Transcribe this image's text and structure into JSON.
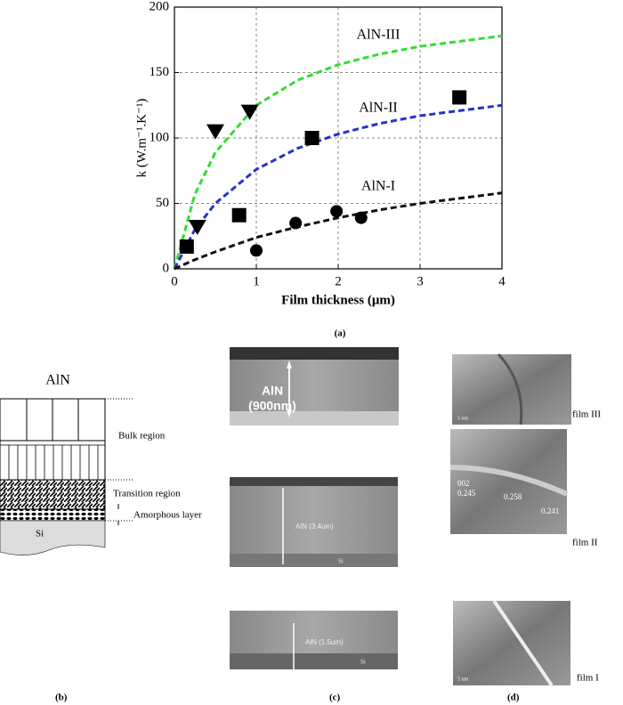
{
  "chart_data": {
    "type": "scatter",
    "caption": "(a)",
    "xlabel": "Film thickness (μm)",
    "ylabel": "k (W.m⁻¹.K⁻¹)",
    "xlim": [
      0,
      4
    ],
    "ylim": [
      0,
      200
    ],
    "xticks": [
      0,
      1,
      2,
      3,
      4
    ],
    "yticks": [
      0,
      50,
      100,
      150,
      200
    ],
    "grid": true,
    "series": [
      {
        "marker": "triangle-down",
        "color": "#000000",
        "x": [
          0.28,
          0.5,
          0.92
        ],
        "values": [
          32,
          105,
          120
        ]
      },
      {
        "marker": "square",
        "color": "#000000",
        "x": [
          0.15,
          0.79,
          1.68,
          3.48
        ],
        "values": [
          17,
          41,
          100,
          131
        ]
      },
      {
        "marker": "circle",
        "color": "#000000",
        "x": [
          1.0,
          1.48,
          1.98,
          2.28
        ],
        "values": [
          14,
          35,
          44,
          39
        ]
      },
      {
        "name": "AlN-III",
        "line": "dashed",
        "color": "#33dd33",
        "x": [
          0,
          0.25,
          0.5,
          1,
          1.5,
          2,
          2.5,
          3,
          3.5,
          4
        ],
        "values": [
          0,
          57,
          89,
          125,
          144,
          156,
          164,
          170,
          174,
          178
        ]
      },
      {
        "name": "AlN-II",
        "line": "dashed",
        "color": "#2233cc",
        "x": [
          0,
          0.25,
          0.5,
          1,
          1.5,
          2,
          2.5,
          3,
          3.5,
          4
        ],
        "values": [
          0,
          30,
          50,
          76,
          92,
          103,
          111,
          117,
          121,
          125
        ]
      },
      {
        "name": "AlN-I",
        "line": "dashed",
        "color": "#111111",
        "x": [
          0,
          0.25,
          0.5,
          1,
          1.5,
          2,
          2.5,
          3,
          3.5,
          4
        ],
        "values": [
          0,
          7,
          13,
          24,
          32,
          39,
          45,
          50,
          54,
          58
        ]
      }
    ]
  },
  "panel_b": {
    "caption": "(b)",
    "title": "AlN",
    "bulk": "Bulk region",
    "transition": "Transition region",
    "amorphous": "Amorphous layer",
    "substrate": "Si"
  },
  "panel_c": {
    "caption": "(c)",
    "images": [
      {
        "label": "AlN",
        "thickness": "(900nm)"
      },
      {
        "label": "AlN (3.4um)",
        "substrate": "Si"
      },
      {
        "label": "AlN (1.5um)",
        "substrate": "Si"
      }
    ]
  },
  "panel_d": {
    "caption": "(d)",
    "films": [
      "film III",
      "film II",
      "film I"
    ],
    "scale": "5 nm",
    "spacings": [
      "002",
      "0.245",
      "0.258",
      "0.241"
    ]
  }
}
